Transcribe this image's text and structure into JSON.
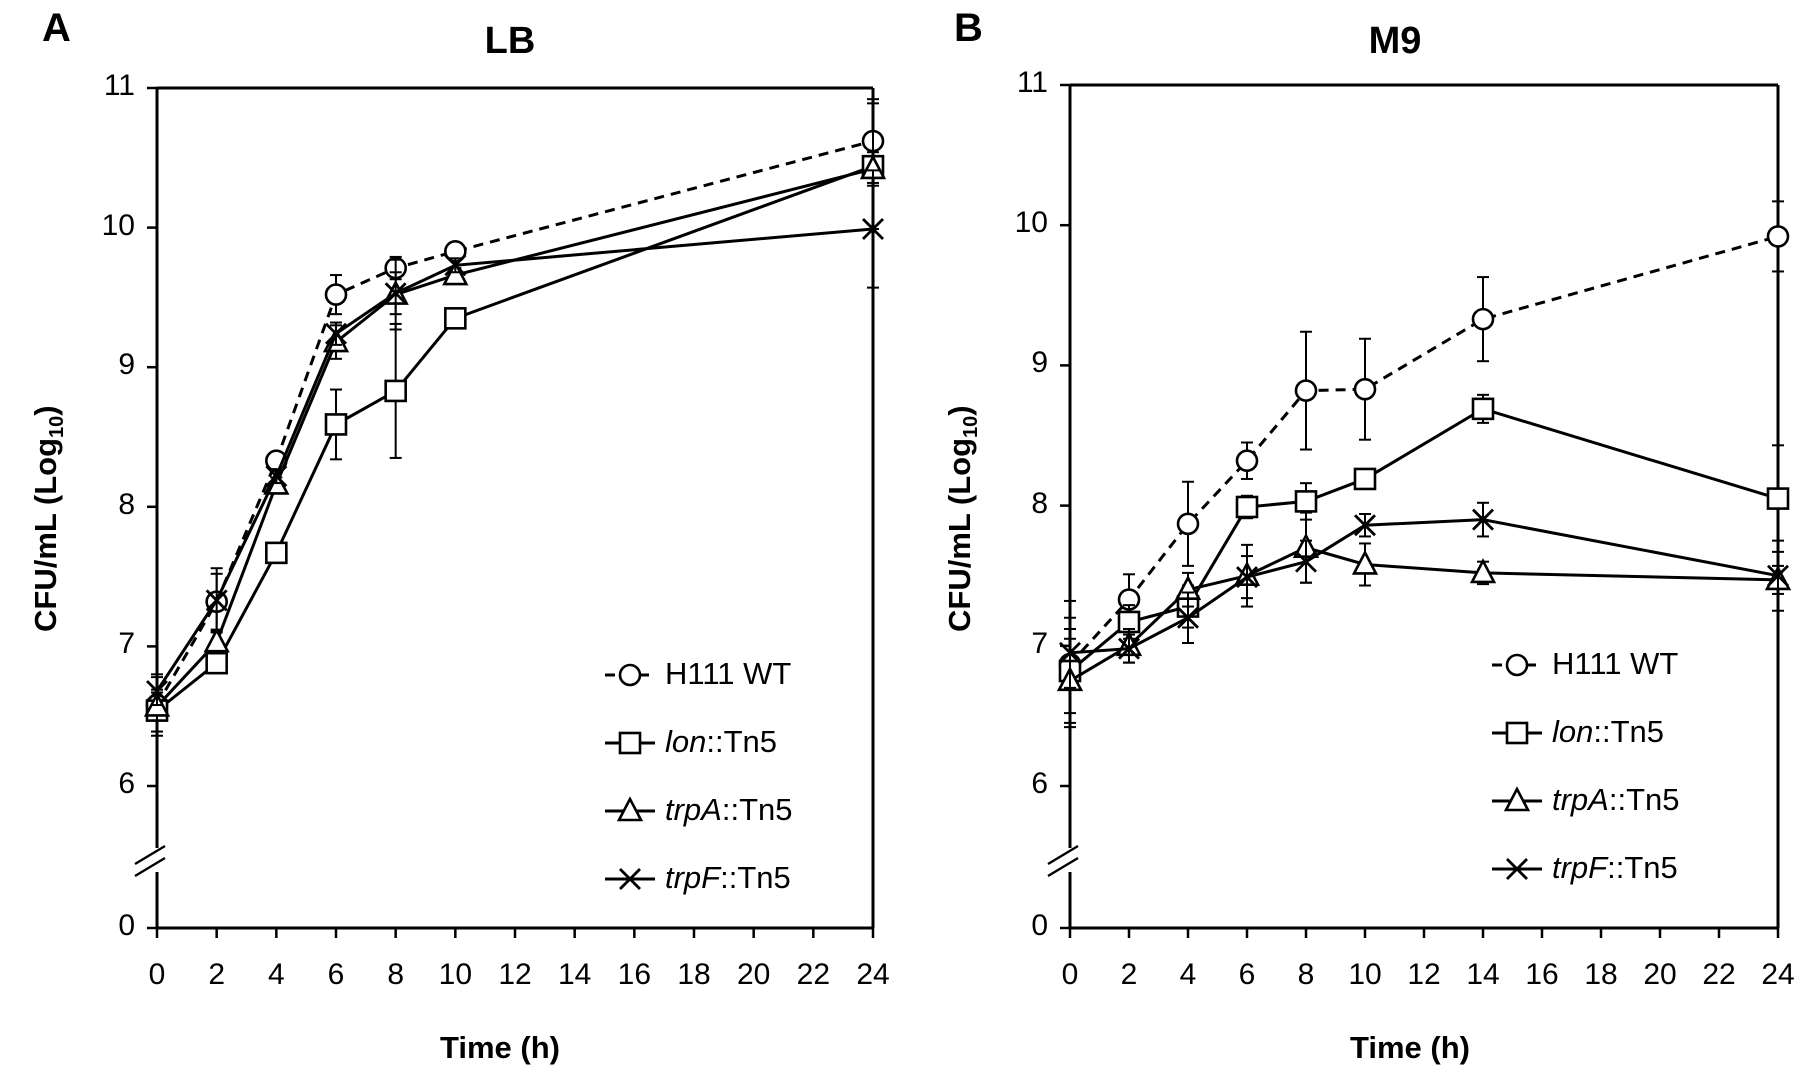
{
  "chart_data": [
    {
      "type": "line",
      "panel_label": "A",
      "title": "LB",
      "xlabel": "Time (h)",
      "ylabel_main": "CFU/mL (Log",
      "ylabel_sub": "10",
      "ylabel_end": ")",
      "x_ticks": [
        "0",
        "2",
        "4",
        "6",
        "8",
        "10",
        "12",
        "14",
        "16",
        "18",
        "20",
        "22",
        "24"
      ],
      "y_ticks": [
        "0",
        "6",
        "7",
        "8",
        "9",
        "10",
        "11"
      ],
      "y_break": "between 0 and 6",
      "legend": [
        {
          "prefix": "",
          "italic": "",
          "suffix": "H111 WT"
        },
        {
          "prefix": "",
          "italic": "lon",
          "suffix": "::Tn5"
        },
        {
          "prefix": "",
          "italic": "trpA",
          "suffix": "::Tn5"
        },
        {
          "prefix": "",
          "italic": "trpF",
          "suffix": "::Tn5"
        }
      ],
      "series": [
        {
          "name": "H111 WT",
          "marker": "circle",
          "dashed": true,
          "x": [
            0,
            2,
            4,
            6,
            8,
            10,
            24
          ],
          "y": [
            6.58,
            7.32,
            8.33,
            9.52,
            9.71,
            9.83,
            10.62
          ],
          "err": [
            0.22,
            0.2,
            0.05,
            0.14,
            0.08,
            0.05,
            0.3
          ]
        },
        {
          "name": "lon::Tn5",
          "marker": "square",
          "dashed": false,
          "x": [
            0,
            2,
            4,
            6,
            8,
            10,
            24
          ],
          "y": [
            6.54,
            6.88,
            7.67,
            8.59,
            8.83,
            9.35,
            10.44
          ],
          "err": [
            0.15,
            0.06,
            0.05,
            0.25,
            0.48,
            0.05,
            0.45
          ]
        },
        {
          "name": "trpA::Tn5",
          "marker": "triangle",
          "dashed": false,
          "x": [
            0,
            2,
            4,
            6,
            8,
            10,
            24
          ],
          "y": [
            6.57,
            7.03,
            8.16,
            9.18,
            9.52,
            9.66,
            10.42
          ],
          "err": [
            0.1,
            0.08,
            0.05,
            0.12,
            0.25,
            0.05,
            0.12
          ]
        },
        {
          "name": "trpF::Tn5",
          "marker": "cross",
          "dashed": false,
          "x": [
            0,
            2,
            4,
            6,
            8,
            10,
            24
          ],
          "y": [
            6.68,
            7.33,
            8.22,
            9.24,
            9.53,
            9.73,
            9.99
          ],
          "err": [
            0.1,
            0.23,
            0.05,
            0.08,
            0.15,
            0.05,
            0.42
          ]
        }
      ]
    },
    {
      "type": "line",
      "panel_label": "B",
      "title": "M9",
      "xlabel": "Time (h)",
      "ylabel_main": "CFU/mL (Log",
      "ylabel_sub": "10",
      "ylabel_end": ")",
      "x_ticks": [
        "0",
        "2",
        "4",
        "6",
        "8",
        "10",
        "12",
        "14",
        "16",
        "18",
        "20",
        "22",
        "24"
      ],
      "y_ticks": [
        "0",
        "6",
        "7",
        "8",
        "9",
        "10",
        "11"
      ],
      "y_break": "between 0 and 6",
      "legend": [
        {
          "prefix": "",
          "italic": "",
          "suffix": "H111 WT"
        },
        {
          "prefix": "",
          "italic": "lon",
          "suffix": "::Tn5"
        },
        {
          "prefix": "",
          "italic": "trpA",
          "suffix": "::Tn5"
        },
        {
          "prefix": "",
          "italic": "trpF",
          "suffix": "::Tn5"
        }
      ],
      "series": [
        {
          "name": "H111 WT",
          "marker": "circle",
          "dashed": true,
          "x": [
            0,
            2,
            4,
            6,
            8,
            10,
            14,
            24
          ],
          "y": [
            6.87,
            7.33,
            7.87,
            8.32,
            8.82,
            8.83,
            9.33,
            9.92
          ],
          "err": [
            0.45,
            0.18,
            0.3,
            0.13,
            0.42,
            0.36,
            0.3,
            0.25
          ]
        },
        {
          "name": "lon::Tn5",
          "marker": "square",
          "dashed": false,
          "x": [
            0,
            2,
            4,
            6,
            8,
            10,
            14,
            24
          ],
          "y": [
            6.82,
            7.17,
            7.28,
            7.99,
            8.03,
            8.19,
            8.69,
            8.05
          ],
          "err": [
            0.3,
            0.12,
            0.15,
            0.08,
            0.13,
            0.06,
            0.1,
            0.38
          ]
        },
        {
          "name": "trpA::Tn5",
          "marker": "triangle",
          "dashed": false,
          "x": [
            0,
            2,
            4,
            6,
            8,
            10,
            14,
            24
          ],
          "y": [
            6.75,
            7.0,
            7.4,
            7.5,
            7.7,
            7.58,
            7.52,
            7.47
          ],
          "err": [
            0.3,
            0.12,
            0.12,
            0.22,
            0.25,
            0.15,
            0.08,
            0.1
          ]
        },
        {
          "name": "trpF::Tn5",
          "marker": "cross",
          "dashed": false,
          "x": [
            0,
            2,
            4,
            6,
            8,
            10,
            14,
            24
          ],
          "y": [
            6.95,
            6.98,
            7.2,
            7.49,
            7.6,
            7.86,
            7.9,
            7.5
          ],
          "err": [
            0.25,
            0.1,
            0.18,
            0.15,
            0.15,
            0.08,
            0.12,
            0.25
          ]
        }
      ]
    }
  ]
}
